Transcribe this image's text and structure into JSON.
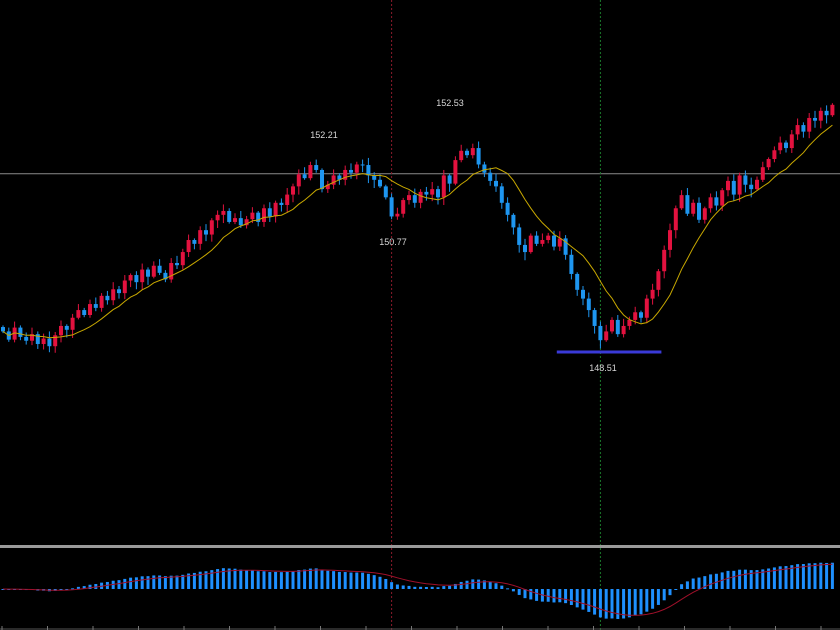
{
  "chart_data": {
    "type": "candlestick",
    "title": "",
    "colors": {
      "up": "#e3123f",
      "down": "#1e96f0",
      "ma": "#c8a800",
      "hline": "#8a8a8a",
      "support": "#3a3ad8",
      "vline1": "#8a1a2a",
      "vline2": "#1a7a2a",
      "macd_hist": "#1e90ff",
      "macd_signal": "#a0102a",
      "separator": "#9a9a9a"
    },
    "ma_period": 10,
    "hline_price": 151.73,
    "support": {
      "price": 148.51,
      "from_index": 96,
      "to_index": 113
    },
    "vlines": [
      67,
      103
    ],
    "annotations": [
      {
        "text": "152.21",
        "index": 53
      },
      {
        "text": "152.53",
        "index": 78
      },
      {
        "text": "150.77",
        "index": 67
      },
      {
        "text": "148.51",
        "index": 103
      }
    ],
    "closes": [
      148.85,
      148.7,
      148.92,
      148.75,
      148.68,
      148.8,
      148.62,
      148.72,
      148.58,
      148.78,
      148.95,
      148.88,
      149.1,
      149.24,
      149.15,
      149.35,
      149.28,
      149.5,
      149.42,
      149.62,
      149.55,
      149.78,
      149.88,
      149.75,
      149.98,
      149.85,
      150.05,
      149.92,
      149.8,
      150.1,
      150.06,
      150.3,
      150.52,
      150.45,
      150.7,
      150.62,
      150.88,
      150.98,
      151.05,
      150.85,
      150.92,
      150.79,
      150.9,
      151.02,
      150.85,
      151.1,
      150.95,
      151.2,
      151.16,
      151.35,
      151.5,
      151.72,
      151.65,
      151.89,
      151.8,
      151.45,
      151.53,
      151.7,
      151.62,
      151.8,
      151.75,
      151.9,
      151.89,
      151.7,
      151.62,
      151.5,
      151.3,
      150.95,
      151.0,
      151.25,
      151.34,
      151.2,
      151.4,
      151.35,
      151.45,
      151.3,
      151.7,
      151.55,
      151.98,
      152.15,
      152.07,
      152.2,
      151.9,
      151.75,
      151.6,
      151.5,
      151.2,
      150.98,
      150.75,
      150.43,
      150.3,
      150.6,
      150.45,
      150.52,
      150.6,
      150.4,
      150.55,
      150.25,
      149.9,
      149.61,
      149.45,
      149.24,
      148.95,
      148.69,
      148.85,
      149.06,
      148.8,
      148.95,
      149.06,
      149.2,
      149.1,
      149.45,
      149.61,
      149.95,
      150.34,
      150.7,
      151.1,
      151.34,
      151.0,
      151.2,
      150.89,
      151.1,
      151.3,
      151.15,
      151.43,
      151.6,
      151.35,
      151.7,
      151.53,
      151.45,
      151.62,
      151.85,
      152.0,
      152.16,
      152.3,
      152.2,
      152.45,
      152.62,
      152.5,
      152.75,
      152.7,
      152.88,
      152.8,
      152.99
    ]
  }
}
